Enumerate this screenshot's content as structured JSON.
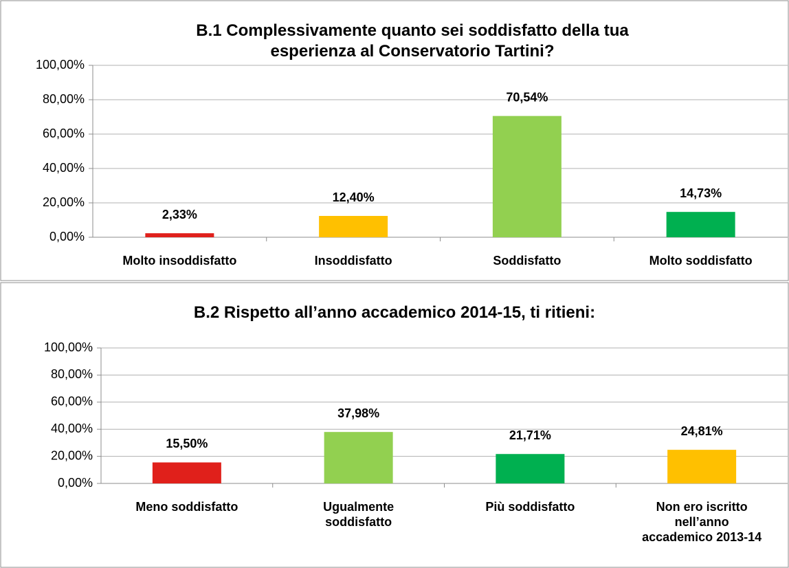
{
  "chart_data": [
    {
      "type": "bar",
      "title": "B.1 Complessivamente quanto sei soddisfatto della tua esperienza al Conservatorio Tartini?",
      "categories": [
        "Molto insoddisfatto",
        "Insoddisfatto",
        "Soddisfatto",
        "Molto soddisfatto"
      ],
      "values": [
        2.33,
        12.4,
        70.54,
        14.73
      ],
      "value_labels": [
        "2,33%",
        "12,40%",
        "70,54%",
        "14,73%"
      ],
      "colors": [
        "#e0201b",
        "#ffc000",
        "#92d050",
        "#00b050"
      ],
      "ylim": [
        0,
        100
      ],
      "yticks": [
        {
          "value": 0,
          "label": "0,00%"
        },
        {
          "value": 20,
          "label": "20,00%"
        },
        {
          "value": 40,
          "label": "40,00%"
        },
        {
          "value": 60,
          "label": "60,00%"
        },
        {
          "value": 80,
          "label": "80,00%"
        },
        {
          "value": 100,
          "label": "100,00%"
        }
      ],
      "grid": true
    },
    {
      "type": "bar",
      "title": "B.2 Rispetto all’anno accademico 2014-15, ti ritieni:",
      "categories": [
        "Meno soddisfatto",
        "Ugualmente soddisfatto",
        "Più soddisfatto",
        "Non ero iscritto nell’anno accademico 2013-14"
      ],
      "values": [
        15.5,
        37.98,
        21.71,
        24.81
      ],
      "value_labels": [
        "15,50%",
        "37,98%",
        "21,71%",
        "24,81%"
      ],
      "colors": [
        "#e0201b",
        "#92d050",
        "#00b050",
        "#ffc000"
      ],
      "ylim": [
        0,
        100
      ],
      "yticks": [
        {
          "value": 0,
          "label": "0,00%"
        },
        {
          "value": 20,
          "label": "20,00%"
        },
        {
          "value": 40,
          "label": "40,00%"
        },
        {
          "value": 60,
          "label": "60,00%"
        },
        {
          "value": 80,
          "label": "80,00%"
        },
        {
          "value": 100,
          "label": "100,00%"
        }
      ],
      "grid": true
    }
  ]
}
